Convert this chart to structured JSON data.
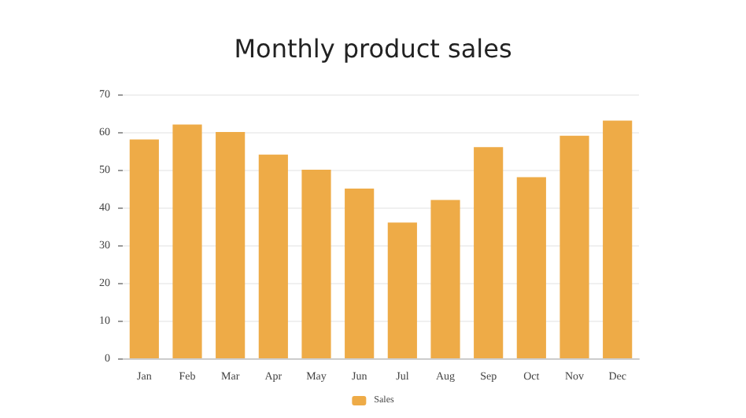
{
  "chart_data": {
    "type": "bar",
    "title": "Monthly product sales",
    "categories": [
      "Jan",
      "Feb",
      "Mar",
      "Apr",
      "May",
      "Jun",
      "Jul",
      "Aug",
      "Sep",
      "Oct",
      "Nov",
      "Dec"
    ],
    "series": [
      {
        "name": "Sales",
        "color": "#eeab47",
        "values": [
          58,
          62,
          60,
          54,
          50,
          45,
          36,
          42,
          56,
          48,
          59,
          63
        ]
      }
    ],
    "ylim": [
      0,
      70
    ],
    "yticks": [
      0,
      10,
      20,
      30,
      40,
      50,
      60,
      70
    ],
    "grid": "y",
    "legend": "bottom"
  }
}
